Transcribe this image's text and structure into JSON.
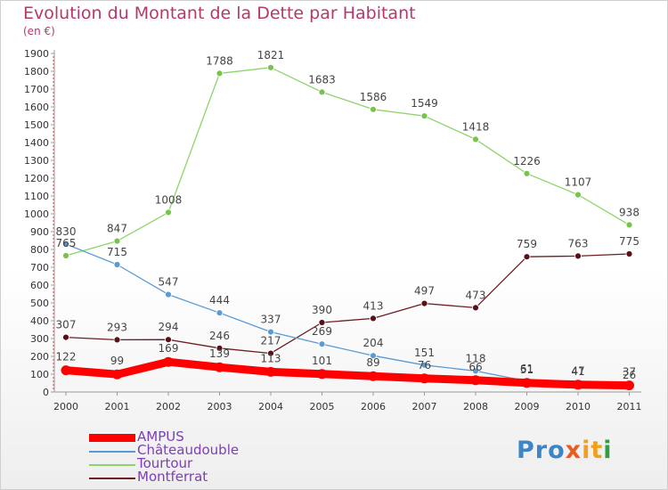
{
  "chart_data": {
    "type": "line",
    "title": "Evolution du Montant de la Dette par Habitant",
    "subtitle": "(en €)",
    "categories": [
      "2000",
      "2001",
      "2002",
      "2003",
      "2004",
      "2005",
      "2006",
      "2007",
      "2008",
      "2009",
      "2010",
      "2011"
    ],
    "ylim": [
      0,
      1900
    ],
    "yticks": [
      0,
      100,
      200,
      300,
      400,
      500,
      600,
      700,
      800,
      900,
      1000,
      1100,
      1200,
      1300,
      1400,
      1500,
      1600,
      1700,
      1800,
      1900
    ],
    "grid": false,
    "legend_position": "bottom-left",
    "series": [
      {
        "name": "AMPUS",
        "color": "#ff0000",
        "values": [
          122,
          99,
          169,
          139,
          113,
          101,
          89,
          76,
          66,
          51,
          41,
          37
        ]
      },
      {
        "name": "Châteaudouble",
        "color": "#5a9bd4",
        "values": [
          830,
          715,
          547,
          444,
          337,
          269,
          204,
          151,
          118,
          61,
          47,
          26
        ]
      },
      {
        "name": "Tourtour",
        "color": "#8fd46a",
        "values": [
          765,
          847,
          1008,
          1788,
          1821,
          1683,
          1586,
          1549,
          1418,
          1226,
          1107,
          938
        ]
      },
      {
        "name": "Montferrat",
        "color": "#6b1e24",
        "values": [
          307,
          293,
          294,
          246,
          217,
          390,
          413,
          497,
          473,
          759,
          763,
          775
        ]
      }
    ]
  },
  "logo": {
    "text": "Proxiti",
    "parts": [
      "Pro",
      "x",
      "it",
      "i"
    ]
  }
}
